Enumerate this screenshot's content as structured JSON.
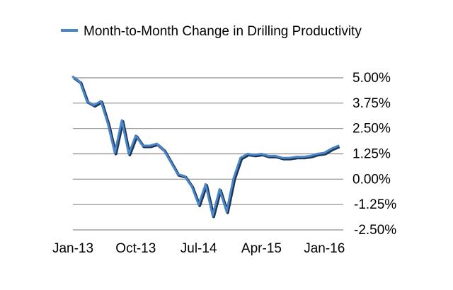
{
  "chart_data": {
    "type": "line",
    "title": "",
    "xlabel": "",
    "ylabel": "",
    "ylim": [
      -0.025,
      0.05
    ],
    "y_ticks": [
      0.05,
      0.0375,
      0.025,
      0.0125,
      0.0,
      -0.0125,
      -0.025
    ],
    "y_tick_labels": [
      "5.00%",
      "3.75%",
      "2.50%",
      "1.25%",
      "0.00%",
      "-1.25%",
      "-2.50%"
    ],
    "x_tick_labels": [
      "Jan-13",
      "Oct-13",
      "Jul-14",
      "Apr-15",
      "Jan-16"
    ],
    "x_tick_months": [
      "2013-01",
      "2013-10",
      "2014-07",
      "2015-04",
      "2016-01"
    ],
    "legend_position": "top",
    "grid": "horizontal",
    "series": [
      {
        "name": "Month-to-Month Change in Drilling Productivity",
        "color": "#4a86c8",
        "x": [
          "2013-01",
          "2013-02",
          "2013-03",
          "2013-04",
          "2013-05",
          "2013-06",
          "2013-07",
          "2013-08",
          "2013-09",
          "2013-10",
          "2013-11",
          "2013-12",
          "2014-01",
          "2014-02",
          "2014-03",
          "2014-04",
          "2014-05",
          "2014-06",
          "2014-07",
          "2014-08",
          "2014-09",
          "2014-10",
          "2014-11",
          "2014-12",
          "2015-01",
          "2015-02",
          "2015-03",
          "2015-04",
          "2015-05",
          "2015-06",
          "2015-07",
          "2015-08",
          "2015-09",
          "2015-10",
          "2015-11",
          "2015-12",
          "2016-01",
          "2016-02",
          "2016-03"
        ],
        "values": [
          0.0505,
          0.048,
          0.0385,
          0.0365,
          0.0385,
          0.0275,
          0.013,
          0.029,
          0.0125,
          0.0215,
          0.0165,
          0.0165,
          0.0175,
          0.0145,
          0.0085,
          0.0025,
          0.0015,
          -0.0035,
          -0.0125,
          -0.0025,
          -0.018,
          -0.005,
          -0.016,
          0.0005,
          0.0105,
          0.0125,
          0.012,
          0.0125,
          0.0115,
          0.0115,
          0.0105,
          0.0105,
          0.011,
          0.011,
          0.0115,
          0.0125,
          0.013,
          0.015,
          0.0165
        ]
      }
    ]
  }
}
